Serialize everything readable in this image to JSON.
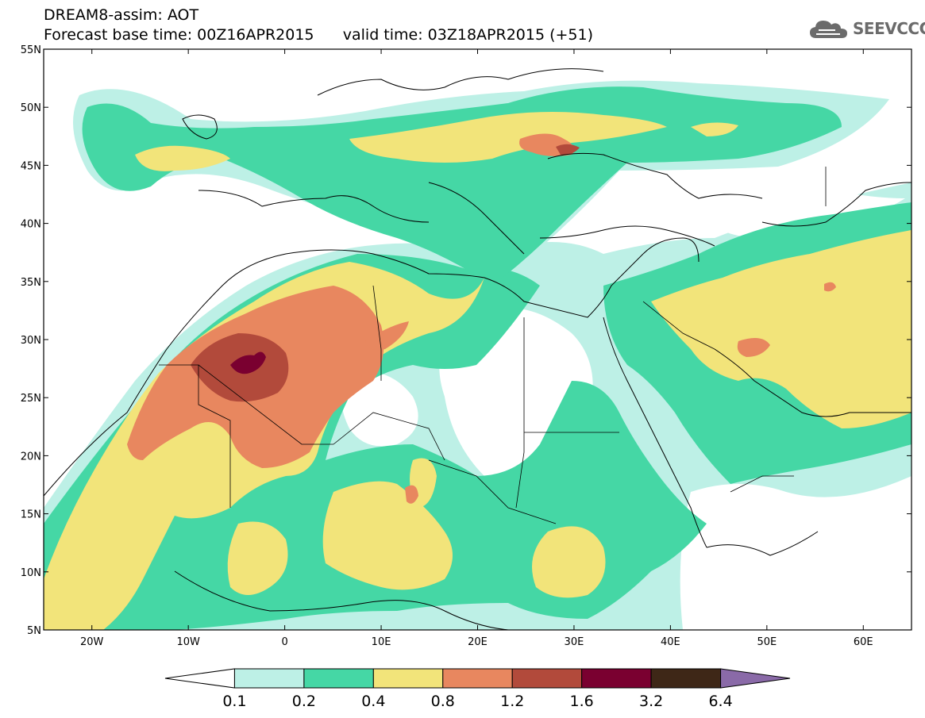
{
  "header": {
    "line1": "DREAM8-assim: AOT",
    "line2": "Forecast base time: 00Z16APR2015      valid time: 03Z18APR2015 (+51)"
  },
  "logo": {
    "text": "SEEVCCC",
    "icon": "cloud-icon"
  },
  "map": {
    "lon_range": [
      -25,
      65
    ],
    "lat_range": [
      5,
      55
    ],
    "lat_ticks": [
      {
        "value": 55,
        "label": "55N"
      },
      {
        "value": 50,
        "label": "50N"
      },
      {
        "value": 45,
        "label": "45N"
      },
      {
        "value": 40,
        "label": "40N"
      },
      {
        "value": 35,
        "label": "35N"
      },
      {
        "value": 30,
        "label": "30N"
      },
      {
        "value": 25,
        "label": "25N"
      },
      {
        "value": 20,
        "label": "20N"
      },
      {
        "value": 15,
        "label": "15N"
      },
      {
        "value": 10,
        "label": "10N"
      },
      {
        "value": 5,
        "label": "5N"
      }
    ],
    "lon_ticks": [
      {
        "value": -20,
        "label": "20W"
      },
      {
        "value": -10,
        "label": "10W"
      },
      {
        "value": 0,
        "label": "0"
      },
      {
        "value": 10,
        "label": "10E"
      },
      {
        "value": 20,
        "label": "20E"
      },
      {
        "value": 30,
        "label": "30E"
      },
      {
        "value": 40,
        "label": "40E"
      },
      {
        "value": 50,
        "label": "50E"
      },
      {
        "value": 60,
        "label": "60E"
      }
    ]
  },
  "colorbar": {
    "labels": [
      "0.1",
      "0.2",
      "0.4",
      "0.8",
      "1.2",
      "1.6",
      "3.2",
      "6.4"
    ],
    "colors": [
      "#ffffff",
      "#bdf0e6",
      "#45d7a5",
      "#f2e47a",
      "#e8875f",
      "#b24a3b",
      "#7a0030",
      "#3e2717",
      "#8a6aa8"
    ]
  },
  "colors": {
    "c1": "#bdf0e6",
    "c2": "#45d7a5",
    "c3": "#f2e47a",
    "c4": "#e8875f",
    "c5": "#b24a3b",
    "c6": "#7a0030"
  }
}
